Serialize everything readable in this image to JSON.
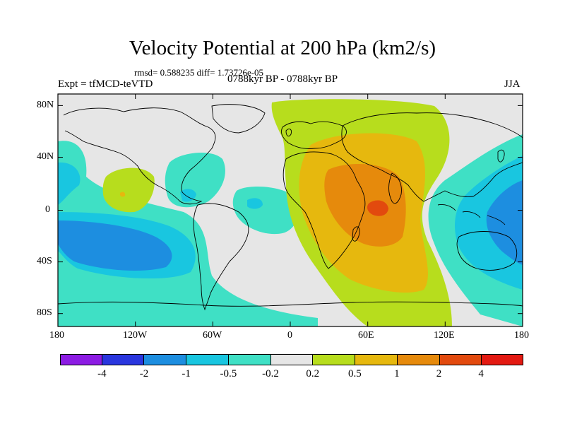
{
  "title": "Velocity Potential at 200 hPa (km2/s)",
  "stats": "rmsd= 0.588235 diff= 1.73726e-05",
  "left_label": "Expt = tfMCD-teVTD",
  "center_label": "0788kyr BP - 0788kyr BP",
  "right_label": "JJA",
  "axes": {
    "x_ticks": [
      "180",
      "120W",
      "60W",
      "0",
      "60E",
      "120E",
      "180"
    ],
    "y_ticks": [
      "80N",
      "40N",
      "0",
      "40S",
      "80S"
    ]
  },
  "colorbar": {
    "colors": [
      "#8c1ce3",
      "#2a36de",
      "#1d8ee0",
      "#19c6e0",
      "#3fe0c5",
      "#e6e6e6",
      "#b7dd1d",
      "#e6b80e",
      "#e68a0c",
      "#e24a0e",
      "#e31a12"
    ],
    "labels": [
      "-4",
      "-2",
      "-1",
      "-0.5",
      "-0.2",
      "0.2",
      "0.5",
      "1",
      "2",
      "4"
    ]
  },
  "map": {
    "projection": "cylindrical equidistant",
    "lon_range": [
      -180,
      180
    ],
    "lat_range": [
      -90,
      90
    ],
    "background_level": "0"
  }
}
